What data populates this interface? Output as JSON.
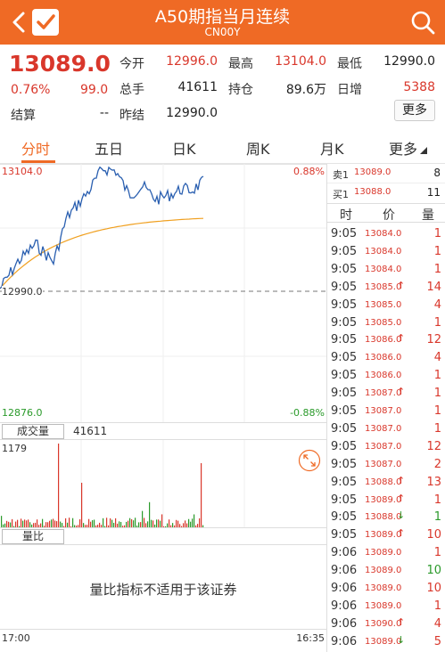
{
  "header": {
    "title": "A50期指当月连续",
    "subtitle": "CN00Y"
  },
  "quote": {
    "price": "13089.0",
    "change_pct": "0.76%",
    "change": "99.0",
    "settle_label": "结算",
    "settle_value": "--",
    "open_label": "今开",
    "open_value": "12996.0",
    "volume_label": "总手",
    "volume_value": "41611",
    "prev_settle_label": "昨结",
    "prev_settle_value": "12990.0",
    "high_label": "最高",
    "high_value": "13104.0",
    "oi_label": "持仓",
    "oi_value": "89.6万",
    "low_label": "最低",
    "low_value": "12990.0",
    "daily_inc_label": "日增",
    "daily_inc_value": "5388",
    "more_label": "更多"
  },
  "tabs": [
    "分时",
    "五日",
    "日K",
    "周K",
    "月K",
    "更多"
  ],
  "chart": {
    "top_price": "13104.0",
    "top_pct": "0.88%",
    "ref_price": "12990.0",
    "bottom_price": "12876.0",
    "bottom_pct": "-0.88%",
    "volume_tag": "成交量",
    "volume_value": "41611",
    "volume_max": "1179",
    "ratio_tag": "量比",
    "ratio_message": "量比指标不适用于该证券",
    "time_start": "17:00",
    "time_end": "16:35",
    "colors": {
      "up": "#d9372b",
      "down": "#2a9a2a",
      "price_line": "#2a5fb0",
      "avg_line": "#f0a020",
      "accent": "#ef6a25"
    }
  },
  "orderbook": {
    "ask_label": "卖1",
    "ask_price": "13089.0",
    "ask_qty": "8",
    "bid_label": "买1",
    "bid_price": "13088.0",
    "bid_qty": "11"
  },
  "ticks_header": {
    "time": "时",
    "price": "价",
    "qty": "量"
  },
  "ticks": [
    {
      "time": "9:05",
      "price": "13084.0",
      "dir": "",
      "qty": "1",
      "color": "red"
    },
    {
      "time": "9:05",
      "price": "13084.0",
      "dir": "",
      "qty": "1",
      "color": "red"
    },
    {
      "time": "9:05",
      "price": "13084.0",
      "dir": "",
      "qty": "1",
      "color": "red"
    },
    {
      "time": "9:05",
      "price": "13085.0",
      "dir": "up",
      "qty": "14",
      "color": "red"
    },
    {
      "time": "9:05",
      "price": "13085.0",
      "dir": "",
      "qty": "4",
      "color": "red"
    },
    {
      "time": "9:05",
      "price": "13085.0",
      "dir": "",
      "qty": "1",
      "color": "red"
    },
    {
      "time": "9:05",
      "price": "13086.0",
      "dir": "up",
      "qty": "12",
      "color": "red"
    },
    {
      "time": "9:05",
      "price": "13086.0",
      "dir": "",
      "qty": "4",
      "color": "red"
    },
    {
      "time": "9:05",
      "price": "13086.0",
      "dir": "",
      "qty": "1",
      "color": "red"
    },
    {
      "time": "9:05",
      "price": "13087.0",
      "dir": "up",
      "qty": "1",
      "color": "red"
    },
    {
      "time": "9:05",
      "price": "13087.0",
      "dir": "",
      "qty": "1",
      "color": "red"
    },
    {
      "time": "9:05",
      "price": "13087.0",
      "dir": "",
      "qty": "1",
      "color": "red"
    },
    {
      "time": "9:05",
      "price": "13087.0",
      "dir": "",
      "qty": "12",
      "color": "red"
    },
    {
      "time": "9:05",
      "price": "13087.0",
      "dir": "",
      "qty": "2",
      "color": "red"
    },
    {
      "time": "9:05",
      "price": "13088.0",
      "dir": "up",
      "qty": "13",
      "color": "red"
    },
    {
      "time": "9:05",
      "price": "13089.0",
      "dir": "up",
      "qty": "1",
      "color": "red"
    },
    {
      "time": "9:05",
      "price": "13088.0",
      "dir": "down",
      "qty": "1",
      "color": "green"
    },
    {
      "time": "9:05",
      "price": "13089.0",
      "dir": "up",
      "qty": "10",
      "color": "red"
    },
    {
      "time": "9:06",
      "price": "13089.0",
      "dir": "",
      "qty": "1",
      "color": "red"
    },
    {
      "time": "9:06",
      "price": "13089.0",
      "dir": "",
      "qty": "10",
      "color": "green"
    },
    {
      "time": "9:06",
      "price": "13089.0",
      "dir": "",
      "qty": "10",
      "color": "red"
    },
    {
      "time": "9:06",
      "price": "13089.0",
      "dir": "",
      "qty": "1",
      "color": "red"
    },
    {
      "time": "9:06",
      "price": "13090.0",
      "dir": "up",
      "qty": "4",
      "color": "red"
    },
    {
      "time": "9:06",
      "price": "13089.0",
      "dir": "down",
      "qty": "5",
      "color": "red"
    }
  ]
}
